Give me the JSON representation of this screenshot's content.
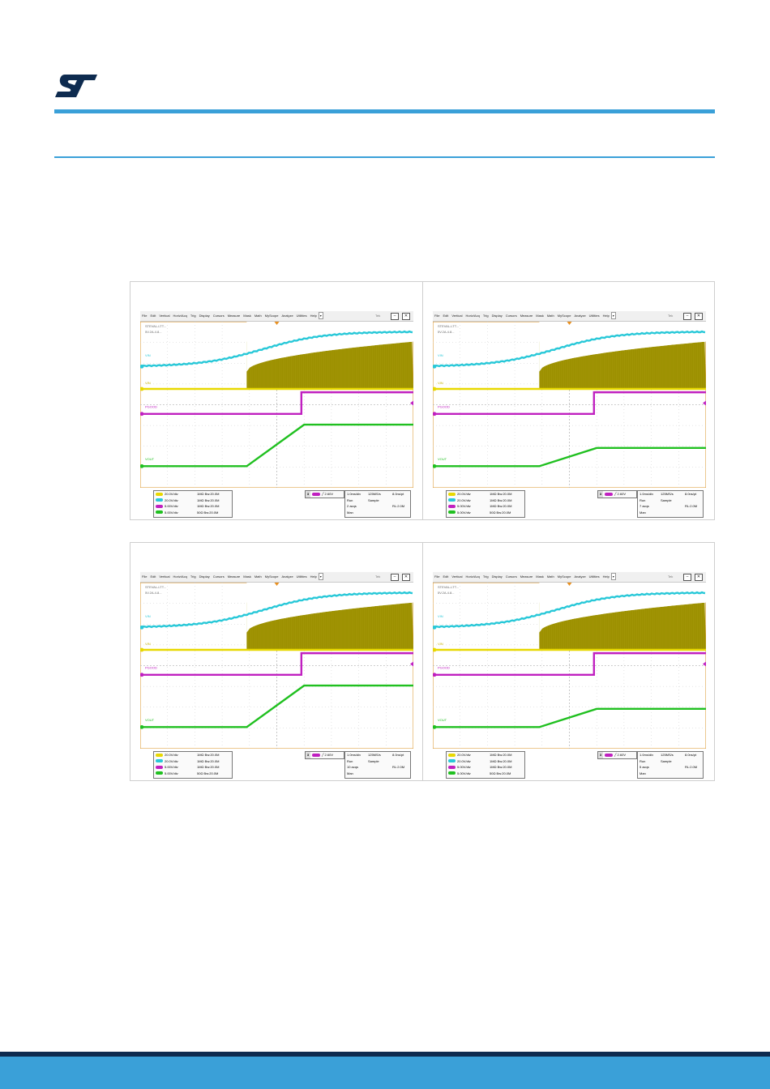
{
  "colors": {
    "brand_blue": "#3aa0d8",
    "brand_dark": "#0e2b4f",
    "ch1": "#c8b400",
    "ch2": "#28c8d8",
    "ch3": "#c020c0",
    "ch4": "#20c020"
  },
  "scopes": [
    {
      "menu": [
        "File",
        "Edit",
        "Vertical",
        "Horiz/Acq",
        "Trig",
        "Display",
        "Cursors",
        "Measure",
        "Mask",
        "Math",
        "MyScope",
        "Analyze",
        "Utilities",
        "Help"
      ],
      "info_text": [
        "STEVAL-LTT...",
        "5V.2A.4.8..."
      ],
      "labels": {
        "ch2": "VIN",
        "ch1": "VIN",
        "ch3": "PGOOD",
        "ch4": "VOUT"
      },
      "channels": [
        {
          "scale": "20.0V/div",
          "imp": "1MΩ Bw:20.0M"
        },
        {
          "scale": "20.0V/div",
          "imp": "1MΩ Bw:20.0M"
        },
        {
          "scale": "5.00V/div",
          "imp": "1MΩ Bw:20.0M"
        },
        {
          "scale": "5.00V/div",
          "imp": "50Ω Bw:20.0M"
        }
      ],
      "trigger": {
        "num": "3",
        "value": "2.60V"
      },
      "timebase": [
        [
          "1.0ms/div",
          "125MS/s",
          "8.0ns/pt"
        ],
        [
          "Run",
          "Sample",
          ""
        ],
        [
          "2 acqs",
          "",
          "RL:2.0M"
        ],
        [
          "Man",
          "",
          ""
        ]
      ],
      "waves": {
        "cyan_start": 0.27,
        "cyan_end": 0.06,
        "switch_x": 0.39,
        "pg_x": 0.59,
        "vout_low": 0.87,
        "vout_high": 0.62,
        "vout_x1": 0.39,
        "vout_x2": 0.6
      }
    },
    {
      "menu": [
        "File",
        "Edit",
        "Vertical",
        "Horiz/Acq",
        "Trig",
        "Display",
        "Cursors",
        "Measure",
        "Mask",
        "Math",
        "MyScope",
        "Analyze",
        "Utilities",
        "Help"
      ],
      "info_text": [
        "STEVAL-LTT...",
        "5V.2A.4.8..."
      ],
      "labels": {
        "ch2": "VIN",
        "ch1": "VIN",
        "ch3": "PGOOD",
        "ch4": "VOUT"
      },
      "channels": [
        {
          "scale": "20.0V/div",
          "imp": "1MΩ Bw:20.0M"
        },
        {
          "scale": "20.0V/div",
          "imp": "1MΩ Bw:20.0M"
        },
        {
          "scale": "5.00V/div",
          "imp": "1MΩ Bw:20.0M"
        },
        {
          "scale": "5.00V/div",
          "imp": "50Ω Bw:20.0M"
        }
      ],
      "trigger": {
        "num": "3",
        "value": "2.60V"
      },
      "timebase": [
        [
          "1.0ms/div",
          "125MS/s",
          "8.0ns/pt"
        ],
        [
          "Run",
          "Sample",
          ""
        ],
        [
          "7 acqs",
          "",
          "RL:2.0M"
        ],
        [
          "Man",
          "",
          ""
        ]
      ],
      "waves": {
        "cyan_start": 0.27,
        "cyan_end": 0.06,
        "switch_x": 0.39,
        "pg_x": 0.59,
        "vout_low": 0.87,
        "vout_high": 0.76,
        "vout_x1": 0.39,
        "vout_x2": 0.6
      }
    },
    {
      "menu": [
        "File",
        "Edit",
        "Vertical",
        "Horiz/Acq",
        "Trig",
        "Display",
        "Cursors",
        "Measure",
        "Mask",
        "Math",
        "MyScope",
        "Analyze",
        "Utilities",
        "Help"
      ],
      "info_text": [
        "STEVAL-LTT...",
        "5V.2A.4.8..."
      ],
      "labels": {
        "ch2": "VIN",
        "ch1": "VIN",
        "ch3": "PGOOD",
        "ch4": "VOUT"
      },
      "channels": [
        {
          "scale": "20.0V/div",
          "imp": "1MΩ Bw:20.0M"
        },
        {
          "scale": "20.0V/div",
          "imp": "1MΩ Bw:20.0M"
        },
        {
          "scale": "5.00V/div",
          "imp": "1MΩ Bw:20.0M"
        },
        {
          "scale": "5.00V/div",
          "imp": "50Ω Bw:20.0M"
        }
      ],
      "trigger": {
        "num": "3",
        "value": "2.60V"
      },
      "timebase": [
        [
          "1.0ms/div",
          "125MS/s",
          "8.0ns/pt"
        ],
        [
          "Run",
          "Sample",
          ""
        ],
        [
          "10 acqs",
          "",
          "RL:2.0M"
        ],
        [
          "Man",
          "",
          ""
        ]
      ],
      "waves": {
        "cyan_start": 0.27,
        "cyan_end": 0.06,
        "switch_x": 0.39,
        "pg_x": 0.59,
        "vout_low": 0.87,
        "vout_high": 0.62,
        "vout_x1": 0.39,
        "vout_x2": 0.6
      }
    },
    {
      "menu": [
        "File",
        "Edit",
        "Vertical",
        "Horiz/Acq",
        "Trig",
        "Display",
        "Cursors",
        "Measure",
        "Mask",
        "Math",
        "MyScope",
        "Analyze",
        "Utilities",
        "Help"
      ],
      "info_text": [
        "STEVAL-LTT...",
        "5V.2A.4.8..."
      ],
      "labels": {
        "ch2": "VIN",
        "ch1": "VIN",
        "ch3": "PGOOD",
        "ch4": "VOUT"
      },
      "channels": [
        {
          "scale": "20.0V/div",
          "imp": "1MΩ Bw:20.0M"
        },
        {
          "scale": "20.0V/div",
          "imp": "1MΩ Bw:20.0M"
        },
        {
          "scale": "5.00V/div",
          "imp": "1MΩ Bw:20.0M"
        },
        {
          "scale": "5.00V/div",
          "imp": "50Ω Bw:20.0M"
        }
      ],
      "trigger": {
        "num": "3",
        "value": "2.60V"
      },
      "timebase": [
        [
          "1.0ms/div",
          "125MS/s",
          "8.0ns/pt"
        ],
        [
          "Run",
          "Sample",
          ""
        ],
        [
          "5 acqs",
          "",
          "RL:2.0M"
        ],
        [
          "Man",
          "",
          ""
        ]
      ],
      "waves": {
        "cyan_start": 0.27,
        "cyan_end": 0.06,
        "switch_x": 0.39,
        "pg_x": 0.59,
        "vout_low": 0.87,
        "vout_high": 0.76,
        "vout_x1": 0.39,
        "vout_x2": 0.6
      }
    }
  ]
}
